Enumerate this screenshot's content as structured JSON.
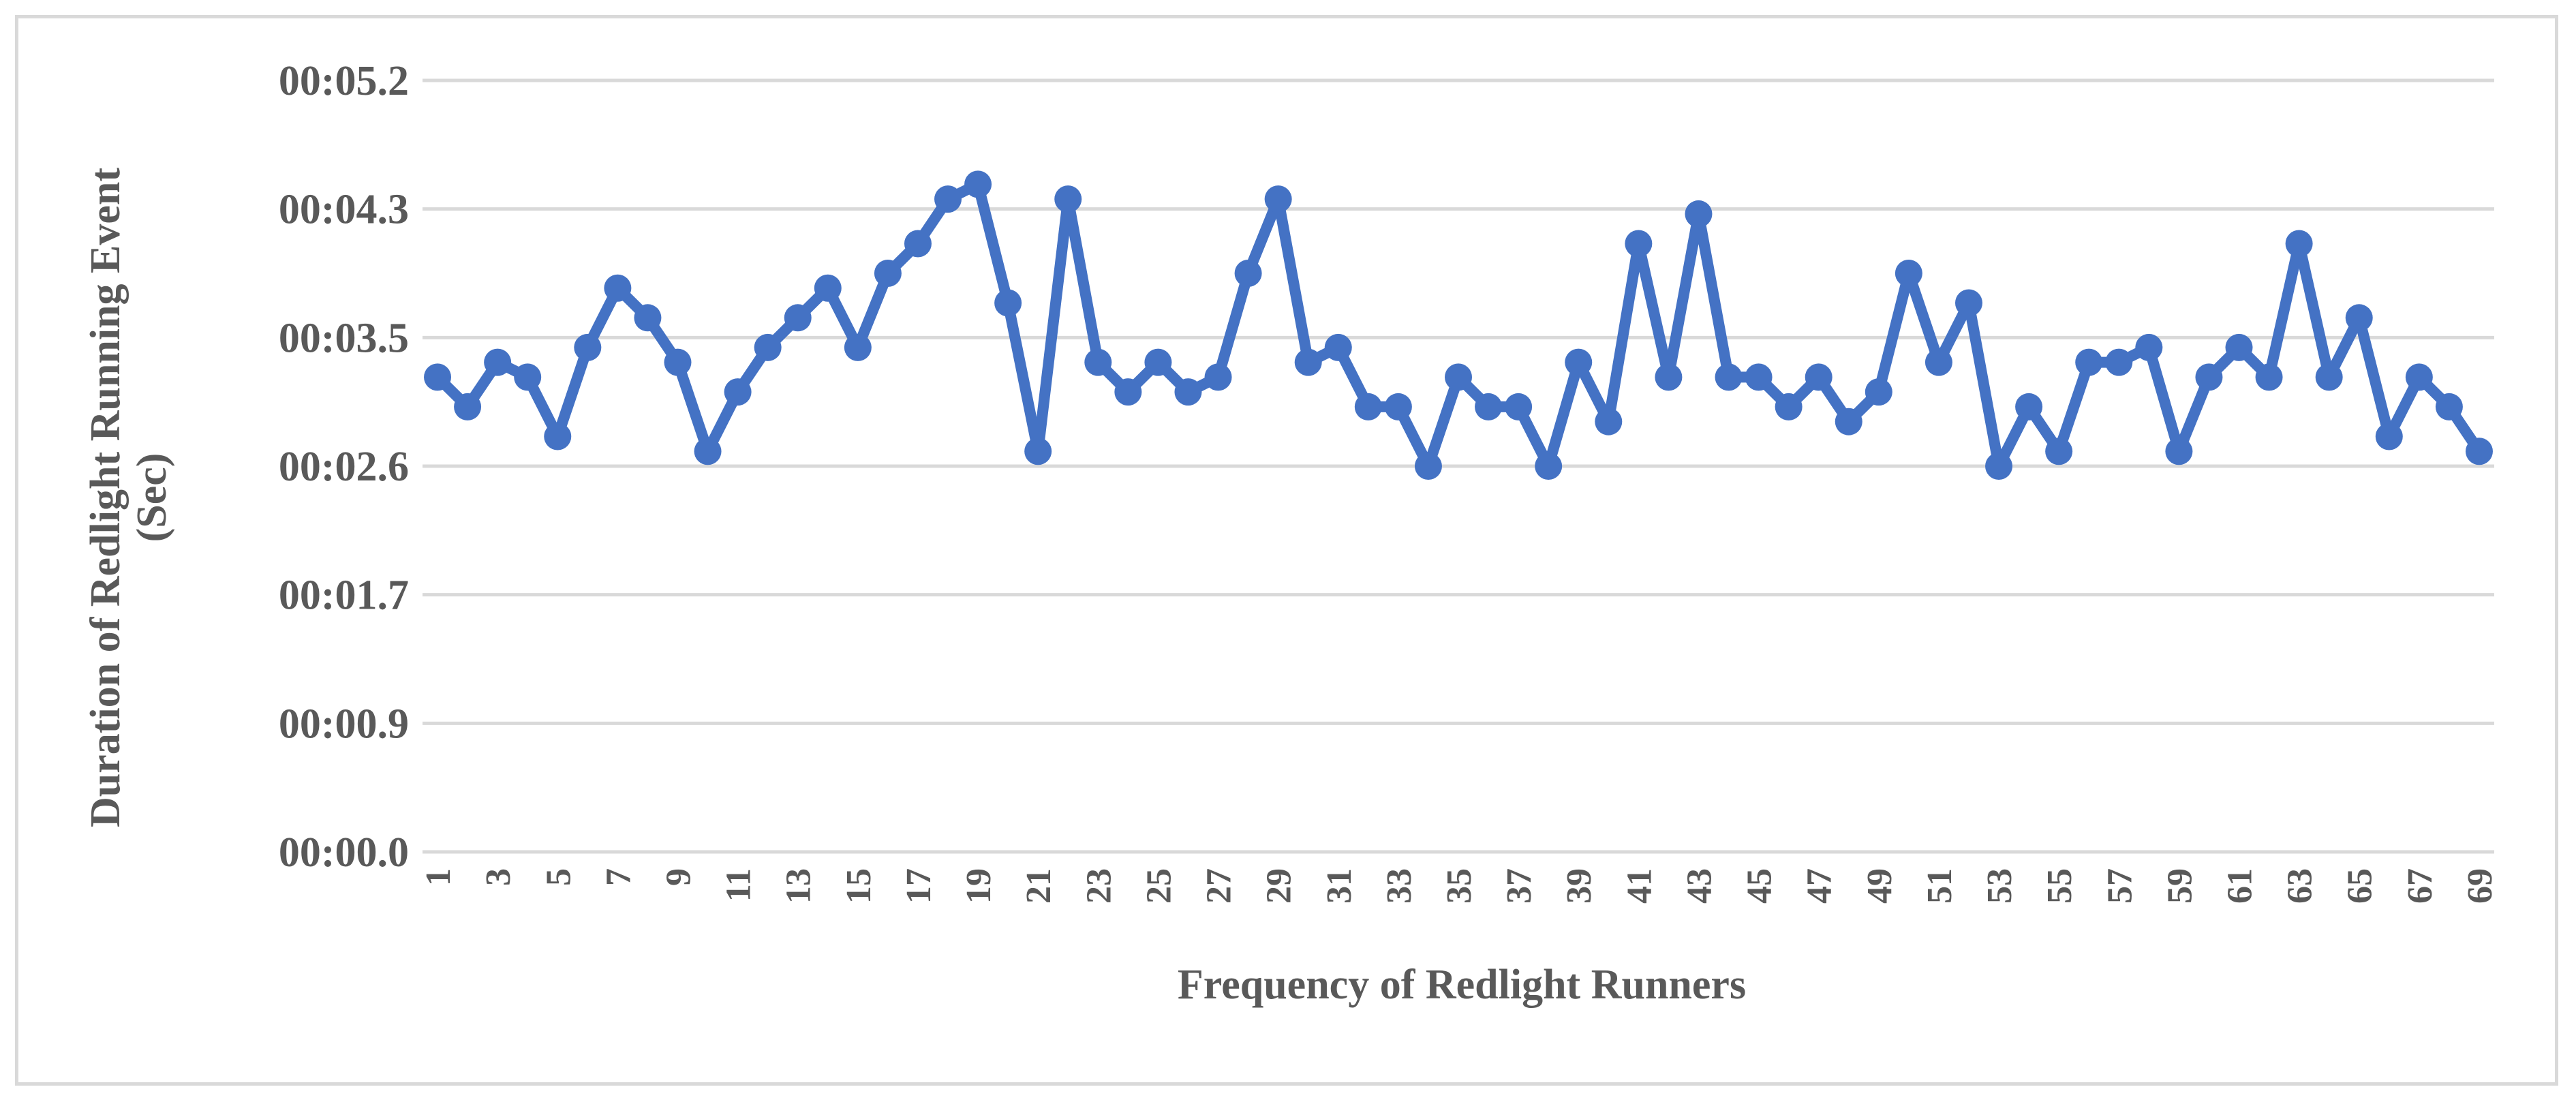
{
  "chart_data": {
    "type": "line",
    "xlabel": "Frequency of Redlight Runners",
    "ylabel_line1": "Duration of Redlight Running Event",
    "ylabel_line2": "(Sec)",
    "y_ticks": [
      {
        "label": "00:00.0",
        "value": 0.0
      },
      {
        "label": "00:00.9",
        "value": 0.8667
      },
      {
        "label": "00:01.7",
        "value": 1.7333
      },
      {
        "label": "00:02.6",
        "value": 2.6
      },
      {
        "label": "00:03.5",
        "value": 3.4667
      },
      {
        "label": "00:04.3",
        "value": 4.3333
      },
      {
        "label": "00:05.2",
        "value": 5.2
      }
    ],
    "ylim": [
      0,
      5.2
    ],
    "x_tick_labels": [
      "1",
      "3",
      "5",
      "7",
      "9",
      "11",
      "13",
      "15",
      "17",
      "19",
      "21",
      "23",
      "25",
      "27",
      "29",
      "31",
      "33",
      "35",
      "37",
      "39",
      "41",
      "43",
      "45",
      "47",
      "49",
      "51",
      "53",
      "55",
      "57",
      "59",
      "61",
      "63",
      "65",
      "67",
      "69"
    ],
    "grid": true,
    "legend": "none",
    "color": "#4472c4",
    "x": [
      1,
      2,
      3,
      4,
      5,
      6,
      7,
      8,
      9,
      10,
      11,
      12,
      13,
      14,
      15,
      16,
      17,
      18,
      19,
      20,
      21,
      22,
      23,
      24,
      25,
      26,
      27,
      28,
      29,
      30,
      31,
      32,
      33,
      34,
      35,
      36,
      37,
      38,
      39,
      40,
      41,
      42,
      43,
      44,
      45,
      46,
      47,
      48,
      49,
      50,
      51,
      52,
      53,
      54,
      55,
      56,
      57,
      58,
      59,
      60,
      61,
      62,
      63,
      64,
      65,
      66,
      67,
      68,
      69
    ],
    "series": [
      {
        "values": [
          3.2,
          3.0,
          3.3,
          3.2,
          2.8,
          3.4,
          3.8,
          3.6,
          3.3,
          2.7,
          3.1,
          3.4,
          3.6,
          3.8,
          3.4,
          3.9,
          4.1,
          4.4,
          4.5,
          3.7,
          2.7,
          4.4,
          3.3,
          3.1,
          3.3,
          3.1,
          3.2,
          3.9,
          4.4,
          3.3,
          3.4,
          3.0,
          3.0,
          2.6,
          3.2,
          3.0,
          3.0,
          2.6,
          3.3,
          2.9,
          4.1,
          3.2,
          4.3,
          3.2,
          3.2,
          3.0,
          3.2,
          2.9,
          3.1,
          3.9,
          3.3,
          3.7,
          2.6,
          3.0,
          2.7,
          3.3,
          3.3,
          3.4,
          2.7,
          3.2,
          3.4,
          3.2,
          4.1,
          3.2,
          3.6,
          2.8,
          3.2,
          3.0,
          2.7
        ]
      }
    ]
  }
}
